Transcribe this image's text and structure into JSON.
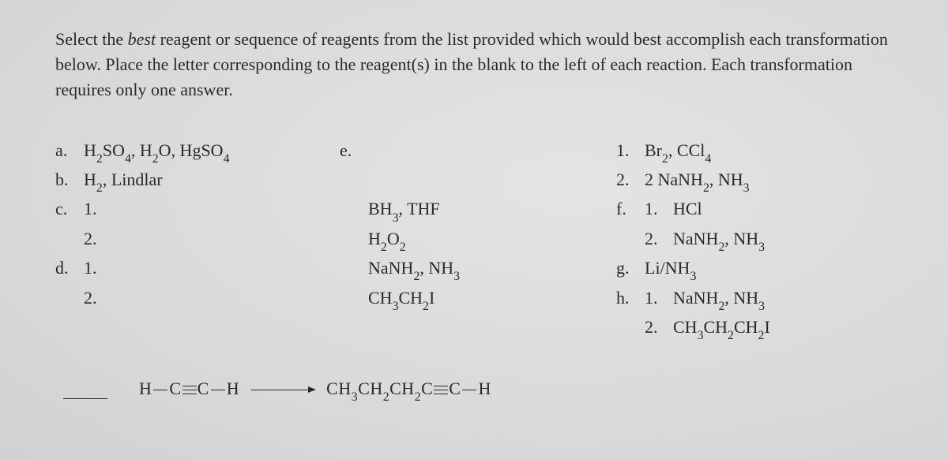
{
  "intro_html": "Select the <em>best</em> reagent or sequence of reagents from the list provided which would best accomplish each transformation below. Place the letter corresponding to the reagent(s) in the blank to the left of each reaction. Each transformation requires only one answer.",
  "col1": {
    "a": "H<sub>2</sub>SO<sub>4</sub>, H<sub>2</sub>O, HgSO<sub>4</sub>",
    "b": "H<sub>2</sub>, Lindlar",
    "c1": "1.",
    "c2": "2.",
    "d1": "1.",
    "d2": "2."
  },
  "col2": {
    "e": "",
    "line1": "BH<sub>3</sub>, THF",
    "line2": "H<sub>2</sub>O<sub>2</sub>",
    "line3": "NaNH<sub>2</sub>, NH<sub>3</sub>",
    "line4": "CH<sub>3</sub>CH<sub>2</sub>I"
  },
  "col3": {
    "one": "Br<sub>2</sub>, CCl<sub>4</sub>",
    "two": "2 NaNH<sub>2</sub>, NH<sub>3</sub>",
    "f1": "HCl",
    "f2": "NaNH<sub>2</sub>, NH<sub>3</sub>",
    "g": "Li/NH<sub>3</sub>",
    "h1": "NaNH<sub>2</sub>, NH<sub>3</sub>",
    "h2": "CH<sub>3</sub>CH<sub>2</sub>CH<sub>2</sub>I"
  },
  "labels": {
    "a": "a.",
    "b": "b.",
    "c": "c.",
    "d": "d.",
    "e": "e.",
    "f": "f.",
    "g": "g.",
    "h": "h.",
    "n1": "1.",
    "n2": "2."
  },
  "reaction": {
    "left_html": "H<span class=\"bond1\"></span>C<span class=\"bond3\"><span></span></span>C<span class=\"bond1\"></span>H",
    "right_html": "CH<sub>3</sub>CH<sub>2</sub>CH<sub>2</sub>C<span class=\"bond3\"><span></span></span>C<span class=\"bond1\"></span>H"
  }
}
